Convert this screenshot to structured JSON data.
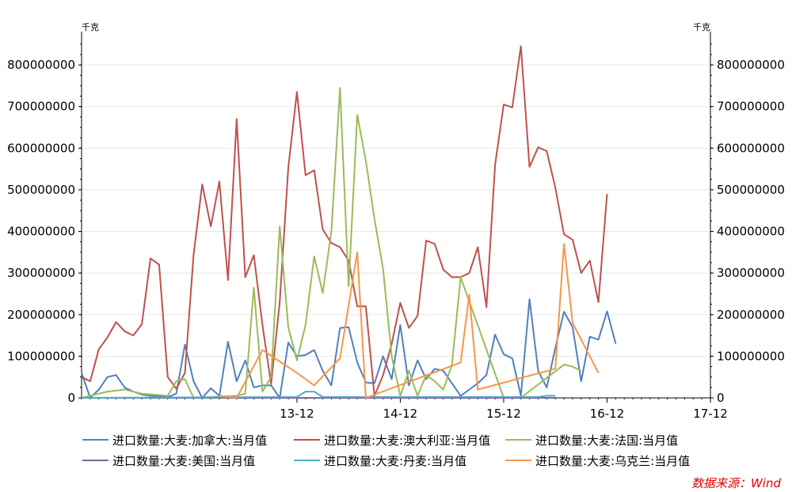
{
  "chart_data": {
    "type": "line",
    "left_unit": "千克",
    "right_unit": "千克",
    "yticks": [
      "0",
      "100000000",
      "200000000",
      "300000000",
      "400000000",
      "500000000",
      "600000000",
      "700000000",
      "800000000"
    ],
    "ylim": [
      0,
      880000000
    ],
    "xtick_labels": [
      "13-12",
      "14-12",
      "15-12",
      "16-12",
      "17-12"
    ],
    "xlim": [
      "2011-11",
      "2017-12"
    ],
    "grid": "horizontal",
    "legend_position": "bottom",
    "series": [
      {
        "name": "进口数量:大麦:加拿大:当月值",
        "color": "#4f81bd",
        "points": [
          [
            "2011-11",
            60000000
          ],
          [
            "2011-12",
            0
          ],
          [
            "2012-01",
            20000000
          ],
          [
            "2012-02",
            50000000
          ],
          [
            "2012-03",
            55000000
          ],
          [
            "2012-04",
            25000000
          ],
          [
            "2012-05",
            15000000
          ],
          [
            "2012-06",
            8000000
          ],
          [
            "2012-07",
            5000000
          ],
          [
            "2012-08",
            3000000
          ],
          [
            "2012-09",
            2000000
          ],
          [
            "2012-10",
            10000000
          ],
          [
            "2012-11",
            128000000
          ],
          [
            "2012-12",
            40000000
          ],
          [
            "2013-01",
            0
          ],
          [
            "2013-02",
            23000000
          ],
          [
            "2013-03",
            5000000
          ],
          [
            "2013-04",
            135000000
          ],
          [
            "2013-05",
            40000000
          ],
          [
            "2013-06",
            90000000
          ],
          [
            "2013-07",
            25000000
          ],
          [
            "2013-08",
            30000000
          ],
          [
            "2013-09",
            30000000
          ],
          [
            "2013-10",
            0
          ],
          [
            "2013-11",
            133000000
          ],
          [
            "2013-12",
            100000000
          ],
          [
            "2014-01",
            103000000
          ],
          [
            "2014-02",
            115000000
          ],
          [
            "2014-03",
            65000000
          ],
          [
            "2014-04",
            30000000
          ],
          [
            "2014-05",
            168000000
          ],
          [
            "2014-06",
            170000000
          ],
          [
            "2014-07",
            85000000
          ],
          [
            "2014-08",
            37000000
          ],
          [
            "2014-09",
            35000000
          ],
          [
            "2014-10",
            100000000
          ],
          [
            "2014-11",
            45000000
          ],
          [
            "2014-12",
            175000000
          ],
          [
            "2015-01",
            30000000
          ],
          [
            "2015-02",
            90000000
          ],
          [
            "2015-03",
            45000000
          ],
          [
            "2015-04",
            70000000
          ],
          [
            "2015-05",
            65000000
          ],
          [
            "2015-06",
            35000000
          ],
          [
            "2015-07",
            5000000
          ],
          [
            "2015-08",
            20000000
          ],
          [
            "2015-09",
            35000000
          ],
          [
            "2015-10",
            55000000
          ],
          [
            "2015-11",
            152000000
          ],
          [
            "2015-12",
            105000000
          ],
          [
            "2016-01",
            95000000
          ],
          [
            "2016-02",
            5000000
          ],
          [
            "2016-03",
            237000000
          ],
          [
            "2016-04",
            65000000
          ],
          [
            "2016-05",
            25000000
          ],
          [
            "2016-06",
            120000000
          ],
          [
            "2016-07",
            207000000
          ],
          [
            "2016-08",
            170000000
          ],
          [
            "2016-09",
            40000000
          ],
          [
            "2016-10",
            147000000
          ],
          [
            "2016-11",
            140000000
          ],
          [
            "2016-12",
            208000000
          ],
          [
            "2017-01",
            130000000
          ]
        ]
      },
      {
        "name": "进口数量:大麦:澳大利亚:当月值",
        "color": "#c0504d",
        "points": [
          [
            "2011-11",
            50000000
          ],
          [
            "2011-12",
            40000000
          ],
          [
            "2012-01",
            117000000
          ],
          [
            "2012-02",
            145000000
          ],
          [
            "2012-03",
            182000000
          ],
          [
            "2012-04",
            160000000
          ],
          [
            "2012-05",
            150000000
          ],
          [
            "2012-06",
            177000000
          ],
          [
            "2012-07",
            335000000
          ],
          [
            "2012-08",
            320000000
          ],
          [
            "2012-09",
            50000000
          ],
          [
            "2012-10",
            22000000
          ],
          [
            "2012-11",
            60000000
          ],
          [
            "2012-12",
            343000000
          ],
          [
            "2013-01",
            513000000
          ],
          [
            "2013-02",
            412000000
          ],
          [
            "2013-03",
            520000000
          ],
          [
            "2013-04",
            283000000
          ],
          [
            "2013-05",
            670000000
          ],
          [
            "2013-06",
            290000000
          ],
          [
            "2013-07",
            343000000
          ],
          [
            "2013-08",
            175000000
          ],
          [
            "2013-09",
            33000000
          ],
          [
            "2013-10",
            230000000
          ],
          [
            "2013-11",
            553000000
          ],
          [
            "2013-12",
            735000000
          ],
          [
            "2014-01",
            535000000
          ],
          [
            "2014-02",
            547000000
          ],
          [
            "2014-03",
            405000000
          ],
          [
            "2014-04",
            372000000
          ],
          [
            "2014-05",
            362000000
          ],
          [
            "2014-06",
            330000000
          ],
          [
            "2014-07",
            220000000
          ],
          [
            "2014-08",
            220000000
          ],
          [
            "2014-09",
            5000000
          ],
          [
            "2014-10",
            55000000
          ],
          [
            "2014-11",
            130000000
          ],
          [
            "2014-12",
            228000000
          ],
          [
            "2015-01",
            168000000
          ],
          [
            "2015-02",
            197000000
          ],
          [
            "2015-03",
            378000000
          ],
          [
            "2015-04",
            370000000
          ],
          [
            "2015-05",
            308000000
          ],
          [
            "2015-06",
            290000000
          ],
          [
            "2015-07",
            290000000
          ],
          [
            "2015-08",
            300000000
          ],
          [
            "2015-09",
            362000000
          ],
          [
            "2015-10",
            218000000
          ],
          [
            "2015-11",
            560000000
          ],
          [
            "2015-12",
            705000000
          ],
          [
            "2016-01",
            698000000
          ],
          [
            "2016-02",
            845000000
          ],
          [
            "2016-03",
            555000000
          ],
          [
            "2016-04",
            602000000
          ],
          [
            "2016-05",
            593000000
          ],
          [
            "2016-06",
            505000000
          ],
          [
            "2016-07",
            393000000
          ],
          [
            "2016-08",
            380000000
          ],
          [
            "2016-09",
            300000000
          ],
          [
            "2016-10",
            330000000
          ],
          [
            "2016-11",
            230000000
          ],
          [
            "2016-12",
            490000000
          ]
        ]
      },
      {
        "name": "进口数量:大麦:法国:当月值",
        "color": "#9bbb59",
        "points": [
          [
            "2011-11",
            0
          ],
          [
            "2012-02",
            15000000
          ],
          [
            "2012-04",
            20000000
          ],
          [
            "2012-06",
            10000000
          ],
          [
            "2012-09",
            5000000
          ],
          [
            "2012-10",
            40000000
          ],
          [
            "2012-11",
            45000000
          ],
          [
            "2012-12",
            0
          ],
          [
            "2013-05",
            5000000
          ],
          [
            "2013-06",
            10000000
          ],
          [
            "2013-07",
            265000000
          ],
          [
            "2013-08",
            15000000
          ],
          [
            "2013-09",
            50000000
          ],
          [
            "2013-10",
            412000000
          ],
          [
            "2013-11",
            170000000
          ],
          [
            "2013-12",
            90000000
          ],
          [
            "2014-01",
            175000000
          ],
          [
            "2014-02",
            340000000
          ],
          [
            "2014-03",
            252000000
          ],
          [
            "2014-04",
            400000000
          ],
          [
            "2014-05",
            745000000
          ],
          [
            "2014-06",
            268000000
          ],
          [
            "2014-07",
            680000000
          ],
          [
            "2014-08",
            570000000
          ],
          [
            "2014-09",
            430000000
          ],
          [
            "2014-10",
            310000000
          ],
          [
            "2014-11",
            100000000
          ],
          [
            "2014-12",
            5000000
          ],
          [
            "2015-01",
            65000000
          ],
          [
            "2015-02",
            5000000
          ],
          [
            "2015-03",
            55000000
          ],
          [
            "2015-04",
            40000000
          ],
          [
            "2015-05",
            20000000
          ],
          [
            "2015-06",
            80000000
          ],
          [
            "2015-07",
            290000000
          ],
          [
            "2015-12",
            0
          ],
          [
            "2016-02",
            0
          ],
          [
            "2016-07",
            80000000
          ],
          [
            "2016-08",
            75000000
          ],
          [
            "2016-09",
            65000000
          ]
        ]
      },
      {
        "name": "进口数量:大麦:美国:当月值",
        "color": "#8064a2",
        "points": [
          [
            "2011-11",
            0
          ],
          [
            "2012-10",
            0
          ],
          [
            "2016-06",
            0
          ]
        ]
      },
      {
        "name": "进口数量:大麦:丹麦:当月值",
        "color": "#4bacc6",
        "points": [
          [
            "2011-11",
            0
          ],
          [
            "2013-12",
            2000000
          ],
          [
            "2014-01",
            15000000
          ],
          [
            "2014-02",
            15000000
          ],
          [
            "2014-03",
            2000000
          ],
          [
            "2016-04",
            2000000
          ],
          [
            "2016-05",
            5000000
          ],
          [
            "2016-06",
            5000000
          ]
        ]
      },
      {
        "name": "进口数量:大麦:乌克兰:当月值",
        "color": "#f79646",
        "points": [
          [
            "2013-03",
            5000000
          ],
          [
            "2013-05",
            0
          ],
          [
            "2013-08",
            115000000
          ],
          [
            "2013-12",
            60000000
          ],
          [
            "2014-02",
            30000000
          ],
          [
            "2014-05",
            95000000
          ],
          [
            "2014-07",
            350000000
          ],
          [
            "2014-08",
            0
          ],
          [
            "2015-07",
            85000000
          ],
          [
            "2015-08",
            248000000
          ],
          [
            "2015-09",
            20000000
          ],
          [
            "2016-06",
            70000000
          ],
          [
            "2016-07",
            370000000
          ],
          [
            "2016-08",
            180000000
          ],
          [
            "2016-11",
            60000000
          ]
        ]
      }
    ]
  },
  "source": "数据来源：Wind"
}
